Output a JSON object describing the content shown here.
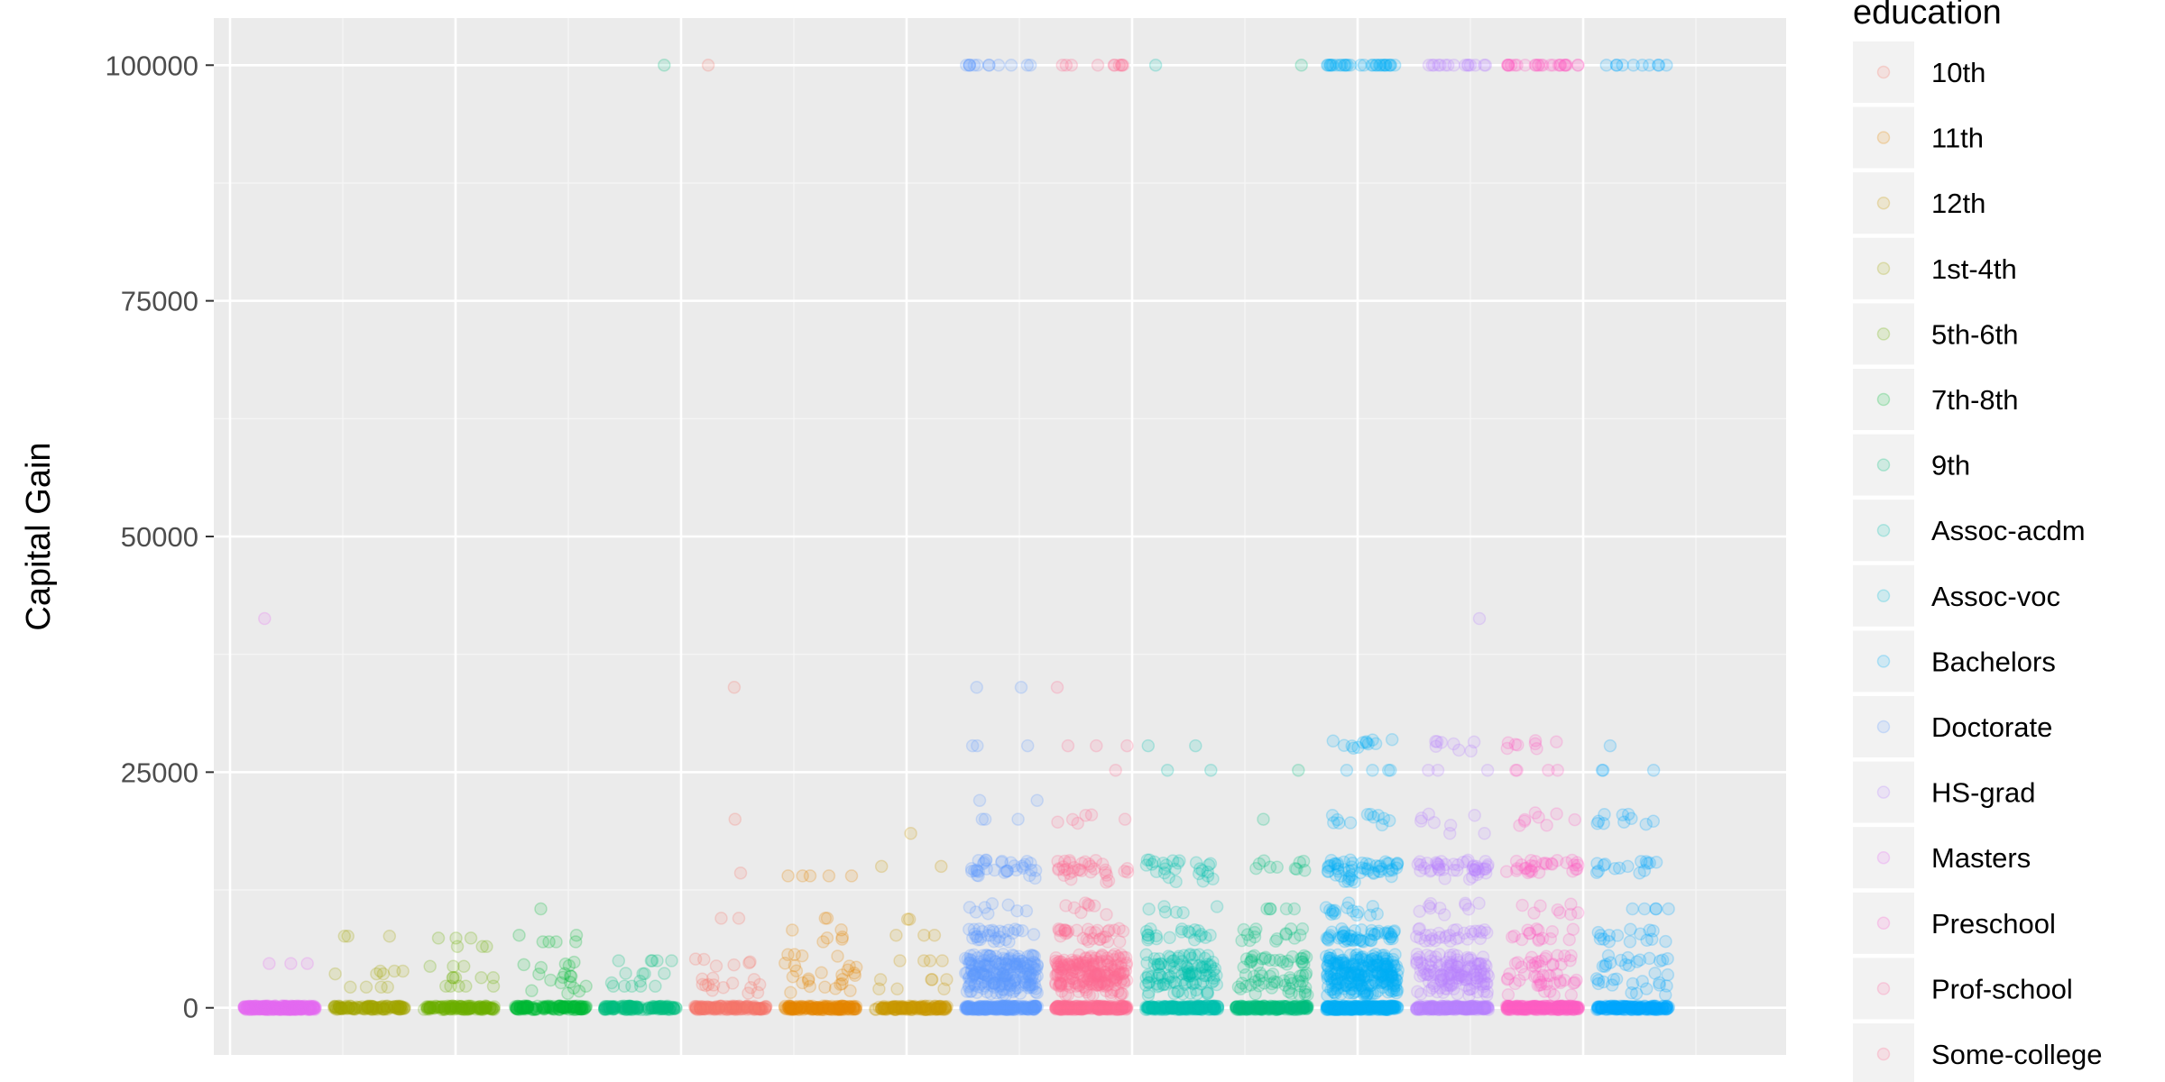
{
  "chart_data": {
    "type": "scatter",
    "title": "",
    "xlabel": "",
    "ylabel": "Capital Gain",
    "ylim": [
      -5000,
      105000
    ],
    "yticks": [
      0,
      25000,
      50000,
      75000,
      100000
    ],
    "ytick_labels": [
      "0",
      "25000",
      "50000",
      "75000",
      "100000"
    ],
    "x_tick_labels_shown": false,
    "grid": true,
    "point_alpha": 0.15,
    "legend": {
      "title": "education",
      "position": "right"
    },
    "series": [
      {
        "name": "10th",
        "color": "#F8766D"
      },
      {
        "name": "11th",
        "color": "#E58700"
      },
      {
        "name": "12th",
        "color": "#C99800"
      },
      {
        "name": "1st-4th",
        "color": "#A3A500"
      },
      {
        "name": "5th-6th",
        "color": "#6BB100"
      },
      {
        "name": "7th-8th",
        "color": "#00BA38"
      },
      {
        "name": "9th",
        "color": "#00BF7D"
      },
      {
        "name": "Assoc-acdm",
        "color": "#00C0AF"
      },
      {
        "name": "Assoc-voc",
        "color": "#00BCD8"
      },
      {
        "name": "Bachelors",
        "color": "#00B0F6"
      },
      {
        "name": "Doctorate",
        "color": "#619CFF"
      },
      {
        "name": "HS-grad",
        "color": "#B983FF"
      },
      {
        "name": "Masters",
        "color": "#E76BF3"
      },
      {
        "name": "Preschool",
        "color": "#FD61D1"
      },
      {
        "name": "Prof-school",
        "color": "#FF67A4"
      },
      {
        "name": "Some-college",
        "color": "#FF6C91"
      }
    ],
    "point_groups": [
      {
        "color": "#E76BF3",
        "points": [
          [
            0,
            60
          ],
          [
            0,
            60
          ],
          [
            0,
            60
          ],
          [
            0,
            60
          ],
          [
            0,
            60
          ],
          [
            4700,
            3
          ],
          [
            41300,
            1
          ]
        ]
      },
      {
        "color": "#A3A500",
        "points": [
          [
            0,
            120
          ],
          [
            7600,
            3
          ],
          [
            3900,
            3
          ],
          [
            2200,
            4
          ],
          [
            3600,
            3
          ]
        ]
      },
      {
        "color": "#6BB100",
        "points": [
          [
            0,
            120
          ],
          [
            6500,
            3
          ],
          [
            4400,
            3
          ],
          [
            7400,
            3
          ],
          [
            2300,
            5
          ],
          [
            3200,
            5
          ]
        ]
      },
      {
        "color": "#00BA38",
        "points": [
          [
            0,
            130
          ],
          [
            7000,
            4
          ],
          [
            4300,
            6
          ],
          [
            3000,
            6
          ],
          [
            2200,
            6
          ],
          [
            10500,
            1
          ],
          [
            7700,
            2
          ]
        ]
      },
      {
        "color": "#00BF7D",
        "points": [
          [
            0,
            130
          ],
          [
            100000,
            1
          ],
          [
            5000,
            5
          ],
          [
            3000,
            6
          ],
          [
            2300,
            5
          ]
        ]
      },
      {
        "color": "#F8766D",
        "points": [
          [
            0,
            140
          ],
          [
            100000,
            1
          ],
          [
            34000,
            1
          ],
          [
            20000,
            1
          ],
          [
            14300,
            1
          ],
          [
            9500,
            2
          ],
          [
            5000,
            6
          ],
          [
            3000,
            8
          ],
          [
            2200,
            6
          ]
        ]
      },
      {
        "color": "#E58700",
        "points": [
          [
            0,
            140
          ],
          [
            14000,
            5
          ],
          [
            9500,
            2
          ],
          [
            7600,
            6
          ],
          [
            5000,
            8
          ],
          [
            3400,
            10
          ],
          [
            2200,
            8
          ]
        ]
      },
      {
        "color": "#C99800",
        "points": [
          [
            0,
            130
          ],
          [
            18500,
            1
          ],
          [
            15000,
            2
          ],
          [
            9400,
            2
          ],
          [
            7700,
            3
          ],
          [
            5000,
            4
          ],
          [
            3000,
            4
          ],
          [
            2000,
            3
          ]
        ]
      },
      {
        "color": "#619CFF",
        "points": [
          [
            0,
            200
          ],
          [
            100000,
            12
          ],
          [
            34000,
            2
          ],
          [
            27800,
            3
          ],
          [
            22000,
            2
          ],
          [
            20000,
            3
          ],
          [
            15000,
            25
          ],
          [
            14000,
            8
          ],
          [
            10500,
            8
          ],
          [
            7700,
            30
          ],
          [
            5000,
            60
          ],
          [
            4000,
            60
          ],
          [
            3000,
            60
          ],
          [
            2000,
            40
          ]
        ]
      },
      {
        "color": "#FF6C91",
        "points": [
          [
            0,
            200
          ],
          [
            100000,
            10
          ],
          [
            34000,
            1
          ],
          [
            27800,
            3
          ],
          [
            25200,
            1
          ],
          [
            20000,
            6
          ],
          [
            15000,
            25
          ],
          [
            14000,
            8
          ],
          [
            10500,
            8
          ],
          [
            7700,
            30
          ],
          [
            5000,
            60
          ],
          [
            4000,
            60
          ],
          [
            3000,
            60
          ],
          [
            2000,
            40
          ]
        ]
      },
      {
        "color": "#00C0AF",
        "points": [
          [
            0,
            180
          ],
          [
            100000,
            1
          ],
          [
            27800,
            2
          ],
          [
            25200,
            2
          ],
          [
            15000,
            20
          ],
          [
            14000,
            6
          ],
          [
            10500,
            6
          ],
          [
            7700,
            20
          ],
          [
            5000,
            30
          ],
          [
            4000,
            30
          ],
          [
            3000,
            30
          ],
          [
            2000,
            20
          ]
        ]
      },
      {
        "color": "#00BF7D",
        "points": [
          [
            0,
            180
          ],
          [
            100000,
            1
          ],
          [
            25200,
            1
          ],
          [
            20000,
            1
          ],
          [
            15000,
            10
          ],
          [
            10500,
            5
          ],
          [
            7700,
            15
          ],
          [
            5000,
            25
          ],
          [
            3000,
            25
          ],
          [
            2000,
            15
          ]
        ]
      },
      {
        "color": "#00B0F6",
        "points": [
          [
            0,
            220
          ],
          [
            100000,
            30
          ],
          [
            27800,
            12
          ],
          [
            25200,
            4
          ],
          [
            20000,
            12
          ],
          [
            15000,
            40
          ],
          [
            14000,
            15
          ],
          [
            10500,
            15
          ],
          [
            7700,
            50
          ],
          [
            5000,
            70
          ],
          [
            4000,
            70
          ],
          [
            3000,
            70
          ],
          [
            2000,
            50
          ]
        ]
      },
      {
        "color": "#B983FF",
        "points": [
          [
            0,
            200
          ],
          [
            100000,
            15
          ],
          [
            41300,
            1
          ],
          [
            27800,
            8
          ],
          [
            25200,
            3
          ],
          [
            20000,
            6
          ],
          [
            18500,
            2
          ],
          [
            15000,
            35
          ],
          [
            14000,
            10
          ],
          [
            10500,
            10
          ],
          [
            7700,
            30
          ],
          [
            5000,
            40
          ],
          [
            4000,
            40
          ],
          [
            3000,
            40
          ],
          [
            2000,
            25
          ]
        ]
      },
      {
        "color": "#FF61C3",
        "points": [
          [
            0,
            200
          ],
          [
            100000,
            25
          ],
          [
            27800,
            8
          ],
          [
            25200,
            4
          ],
          [
            20000,
            8
          ],
          [
            15000,
            30
          ],
          [
            10500,
            8
          ],
          [
            7700,
            15
          ],
          [
            5000,
            20
          ],
          [
            3000,
            20
          ],
          [
            2000,
            10
          ]
        ]
      },
      {
        "color": "#00A9FF",
        "points": [
          [
            0,
            160
          ],
          [
            100000,
            10
          ],
          [
            27800,
            1
          ],
          [
            25200,
            3
          ],
          [
            20000,
            10
          ],
          [
            15000,
            15
          ],
          [
            10500,
            5
          ],
          [
            7700,
            15
          ],
          [
            5000,
            15
          ],
          [
            3000,
            10
          ],
          [
            2000,
            8
          ]
        ]
      }
    ]
  }
}
